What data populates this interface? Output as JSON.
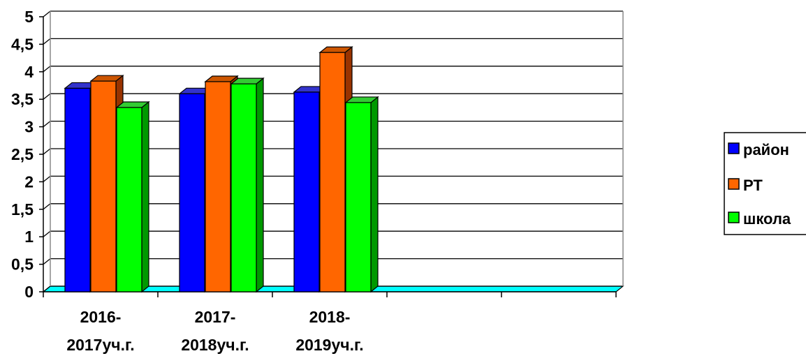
{
  "chart_data": {
    "type": "bar",
    "categories": [
      [
        "2016-",
        "2017уч.г."
      ],
      [
        "2017-",
        "2018уч.г."
      ],
      [
        "2018-",
        "2019уч.г."
      ],
      [
        "",
        ""
      ],
      [
        "",
        ""
      ]
    ],
    "series": [
      {
        "name": "район",
        "values": [
          3.7,
          3.6,
          3.63,
          null,
          null
        ]
      },
      {
        "name": "РТ",
        "values": [
          3.83,
          3.82,
          4.35,
          null,
          null
        ]
      },
      {
        "name": "школа",
        "values": [
          3.35,
          3.78,
          3.44,
          null,
          null
        ]
      }
    ],
    "y_ticks": [
      "0",
      "0,5",
      "1",
      "1,5",
      "2",
      "2,5",
      "3",
      "3,5",
      "4",
      "4,5",
      "5"
    ],
    "ylim": [
      0,
      5
    ],
    "grid": true,
    "legend_position": "right",
    "colors": {
      "series_front": [
        "#0000ff",
        "#ff6600",
        "#00ff00"
      ],
      "series_side": [
        "#000099",
        "#993300",
        "#009900"
      ],
      "series_top": [
        "#3333cc",
        "#cc5500",
        "#33cc33"
      ],
      "floor": "#00ffff",
      "grid": "#000000"
    }
  }
}
